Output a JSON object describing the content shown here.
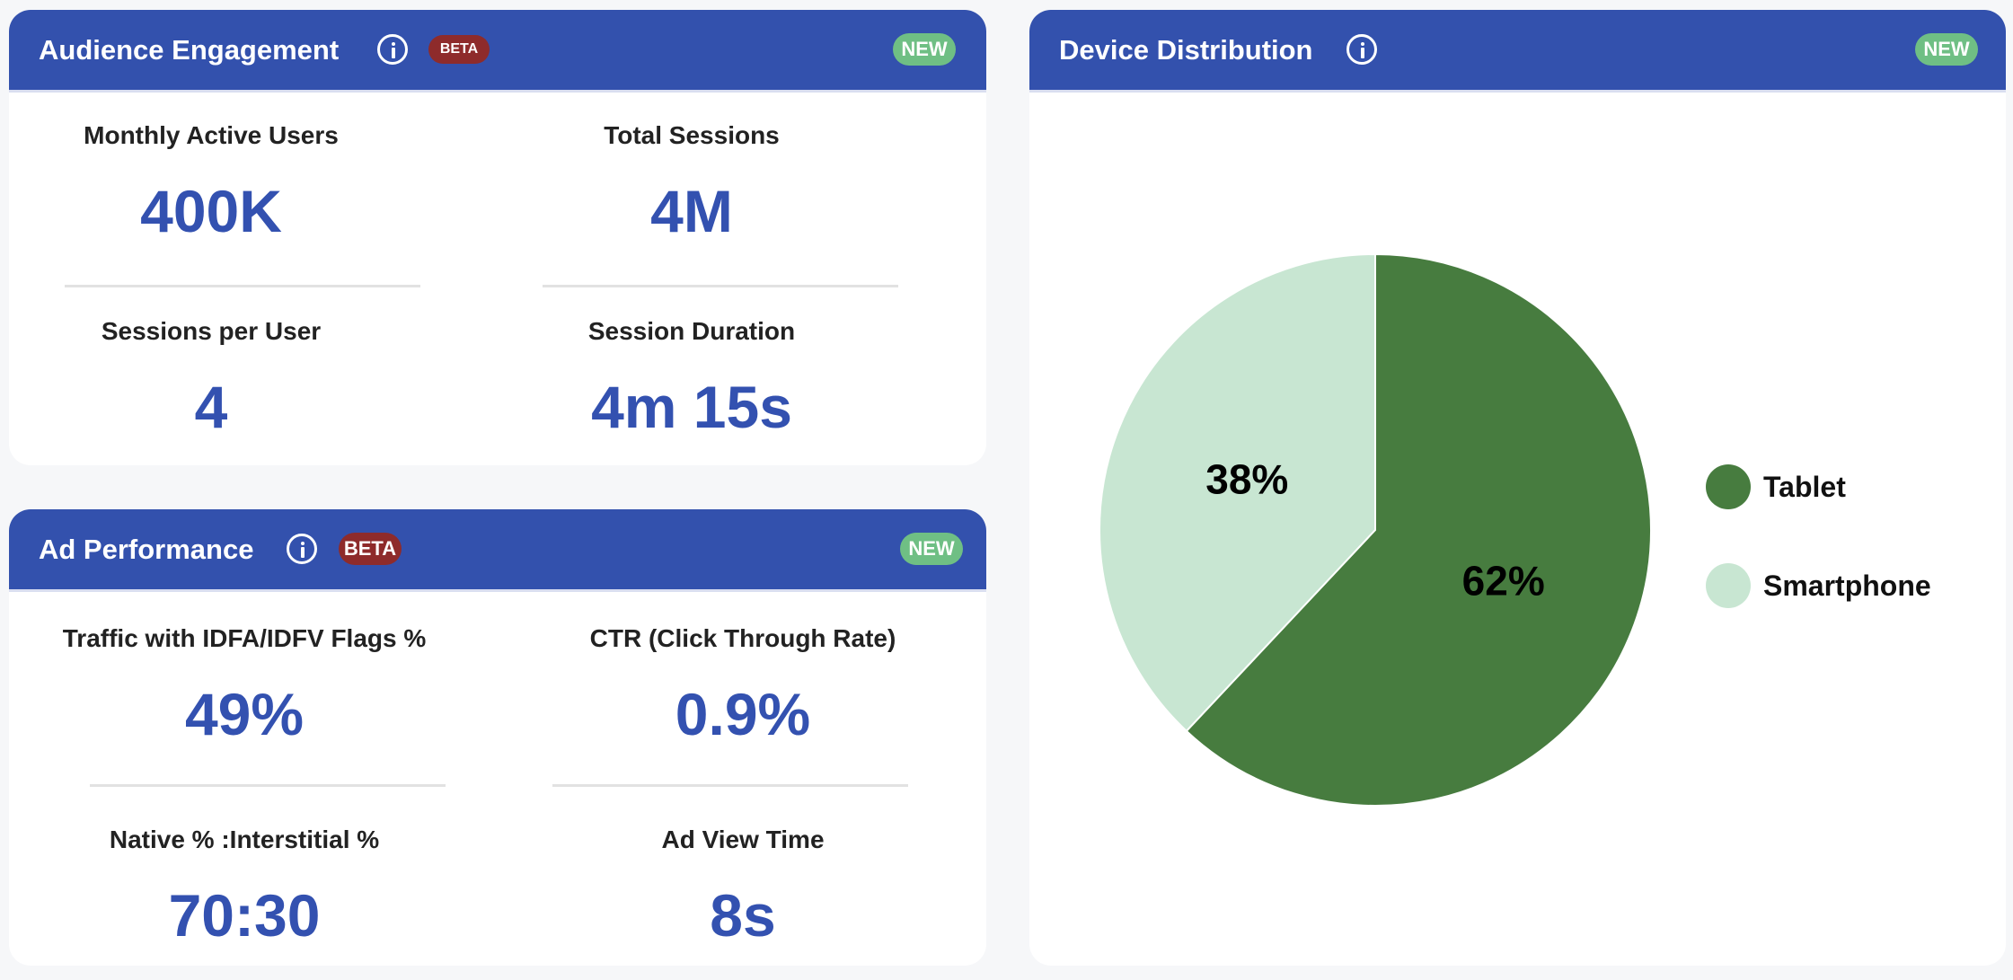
{
  "audience_engagement": {
    "title": "Audience Engagement",
    "info_icon": "info-circle-icon",
    "beta_badge": "BETA",
    "new_badge": "NEW",
    "stats": [
      {
        "label": "Monthly Active Users",
        "value": "400K"
      },
      {
        "label": "Total Sessions",
        "value": "4M"
      },
      {
        "label": "Sessions per User",
        "value": "4"
      },
      {
        "label": "Session Duration",
        "value": "4m 15s"
      }
    ]
  },
  "ad_performance": {
    "title": "Ad Performance",
    "info_icon": "info-circle-icon",
    "beta_badge": "BETA",
    "new_badge": "NEW",
    "stats": [
      {
        "label": "Traffic with IDFA/IDFV Flags %",
        "value": "49%"
      },
      {
        "label": "CTR (Click Through Rate)",
        "value": "0.9%"
      },
      {
        "label": "Native % :Interstitial %",
        "value": "70:30"
      },
      {
        "label": "Ad View Time",
        "value": "8s"
      }
    ]
  },
  "device_distribution": {
    "title": "Device Distribution",
    "info_icon": "info-circle-icon",
    "new_badge": "NEW"
  },
  "colors": {
    "header": "#3351ad",
    "value_text": "#3351b0",
    "beta": "#8e2b2b",
    "new": "#6fbf84",
    "tablet": "#477c3f",
    "smartphone": "#c8e6d2"
  },
  "chart_data": {
    "type": "pie",
    "title": "Device Distribution",
    "categories": [
      "Tablet",
      "Smartphone"
    ],
    "values": [
      62,
      38
    ],
    "labels": [
      "62%",
      "38%"
    ],
    "colors": [
      "#477c3f",
      "#c8e6d2"
    ],
    "start_angle": "top, clockwise",
    "legend": {
      "position": "right",
      "entries": [
        "Tablet",
        "Smartphone"
      ]
    }
  }
}
